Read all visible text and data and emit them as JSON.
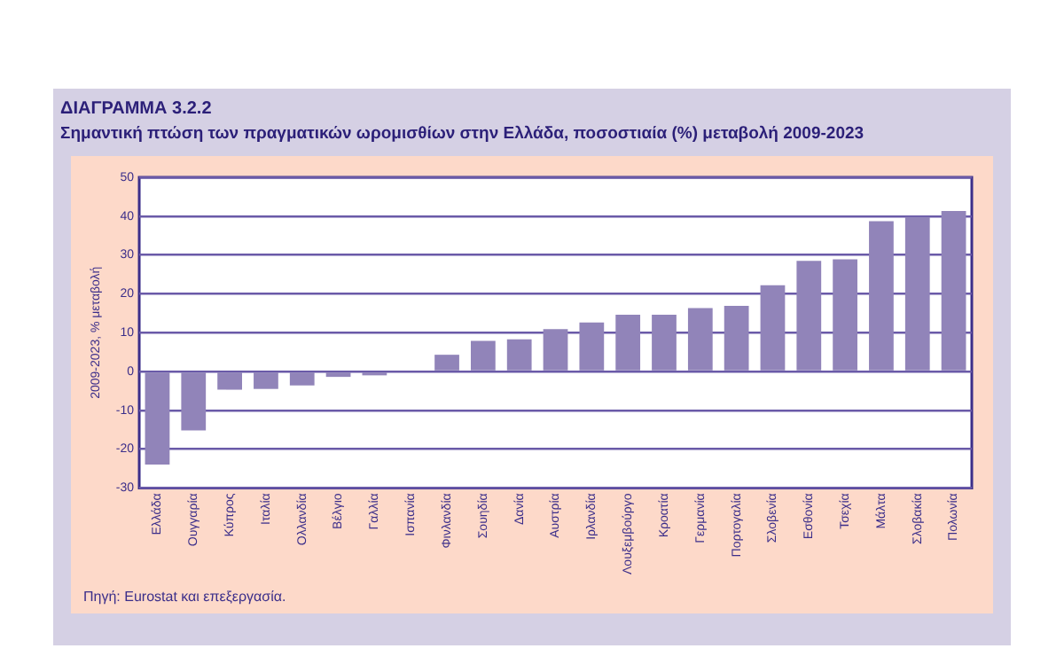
{
  "chart_data": {
    "type": "bar",
    "title": "ΔΙΑΓΡΑΜΜΑ 3.2.2",
    "subtitle": "Σημαντική πτώση των πραγματικών ωρομισθίων στην Ελλάδα, ποσοστιαία (%) μεταβολή 2009-2023",
    "ylabel": "2009-2023, % μεταβολή",
    "categories": [
      "Ελλάδα",
      "Ουγγαρία",
      "Κύπρος",
      "Ιταλία",
      "Ολλανδία",
      "Βέλγιο",
      "Γαλλία",
      "Ισπανία",
      "Φινλανδία",
      "Σουηδία",
      "Δανία",
      "Αυστρία",
      "Ιρλανδία",
      "Λουξεμβούργο",
      "Κροατία",
      "Γερμανία",
      "Πορτογαλία",
      "Σλοβενία",
      "Εσθονία",
      "Τσεχία",
      "Μάλτα",
      "Σλοβακία",
      "Πολωνία"
    ],
    "values": [
      -24,
      -15.2,
      -4.7,
      -4.5,
      -3.6,
      -1.4,
      -1,
      null,
      4.3,
      7.9,
      8.3,
      10.9,
      12.6,
      14.6,
      14.6,
      16.3,
      16.9,
      22.2,
      28.5,
      28.9,
      38.7,
      39.8,
      41.3
    ],
    "color": "#9184b9",
    "ylim": [
      -30,
      50
    ],
    "yticks": [
      -30,
      -20,
      -10,
      0,
      10,
      20,
      30,
      40,
      50
    ],
    "grid": "y",
    "legend": false,
    "annotations": [
      "Πηγή: Eurostat και επεξεργασία."
    ]
  }
}
